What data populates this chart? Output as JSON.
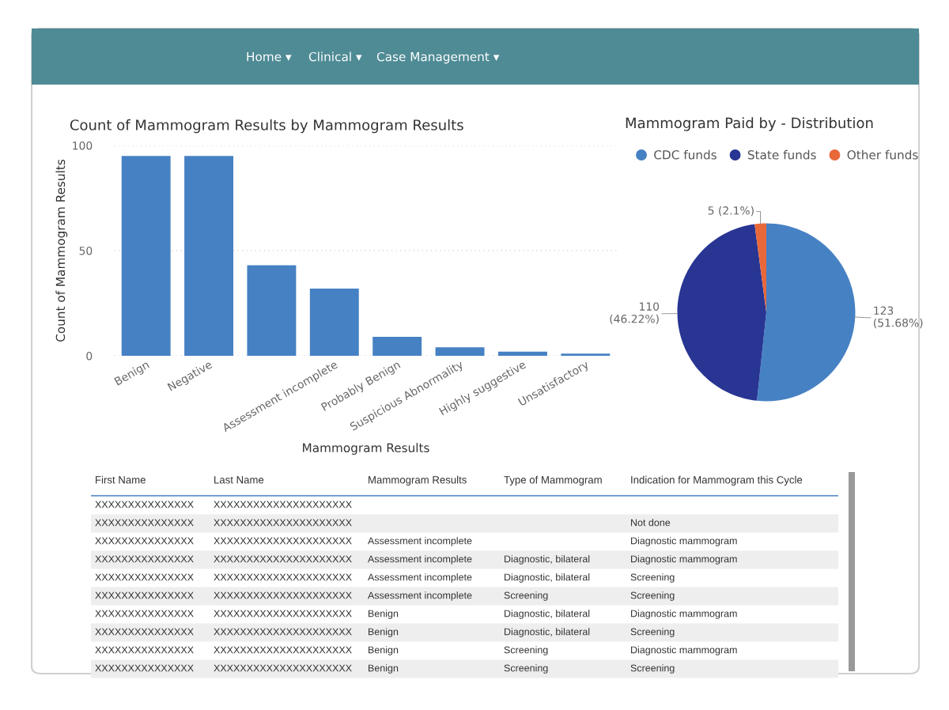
{
  "chart_data": [
    {
      "type": "other",
      "annotations": [
        "Home ▾",
        "Clinical ▾",
        "Case Management ▾"
      ]
    },
    {
      "type": "bar",
      "title": "Count of Mammogram Results by Mammogram Results",
      "xlabel": "Mammogram Results",
      "ylabel": "Count of Mammogram Results",
      "categories": [
        "Benign",
        "Negative",
        null,
        "Assessment incomplete",
        "Probably Benign",
        "Suspicious Abnormality",
        "Highly suggestive",
        "Unsatisfactory"
      ],
      "values": [
        95,
        95,
        43,
        32,
        9,
        4,
        2,
        1
      ],
      "color": "#4681c3",
      "ylim": [
        0,
        100
      ],
      "yticks": [
        0,
        50,
        100
      ],
      "grid": "y"
    },
    {
      "type": "pie",
      "title": "Mammogram Paid by - Distribution",
      "categories": [
        "CDC funds",
        "State funds",
        "Other funds"
      ],
      "values": [
        123,
        110,
        5
      ],
      "colors": [
        "#4681c3",
        "#283593",
        "#e8683a"
      ],
      "value_labels": [
        "123\n(51.68%)",
        "110\n(46.22%)",
        "5 (2.1%)"
      ],
      "legend": "top"
    },
    {
      "type": "other",
      "categories": [
        "First Name",
        "Last Name",
        "Mammogram Results",
        "Type of Mammogram",
        "Indication for Mammogram this Cycle"
      ],
      "cell_labels": [
        [
          "XXXXXXXXXXXXXXX",
          "XXXXXXXXXXXXXXXXXXXXX",
          null,
          null,
          null
        ],
        [
          "XXXXXXXXXXXXXXX",
          "XXXXXXXXXXXXXXXXXXXXX",
          null,
          null,
          "Not done"
        ],
        [
          "XXXXXXXXXXXXXXX",
          "XXXXXXXXXXXXXXXXXXXXX",
          "Assessment incomplete",
          null,
          "Diagnostic mammogram"
        ],
        [
          "XXXXXXXXXXXXXXX",
          "XXXXXXXXXXXXXXXXXXXXX",
          "Assessment incomplete",
          "Diagnostic, bilateral",
          "Diagnostic mammogram"
        ],
        [
          "XXXXXXXXXXXXXXX",
          "XXXXXXXXXXXXXXXXXXXXX",
          "Assessment incomplete",
          "Diagnostic, bilateral",
          "Screening"
        ],
        [
          "XXXXXXXXXXXXXXX",
          "XXXXXXXXXXXXXXXXXXXXX",
          "Assessment incomplete",
          "Screening",
          "Screening"
        ],
        [
          "XXXXXXXXXXXXXXX",
          "XXXXXXXXXXXXXXXXXXXXX",
          "Benign",
          "Diagnostic, bilateral",
          "Diagnostic mammogram"
        ],
        [
          "XXXXXXXXXXXXXXX",
          "XXXXXXXXXXXXXXXXXXXXX",
          "Benign",
          "Diagnostic, bilateral",
          "Screening"
        ],
        [
          "XXXXXXXXXXXXXXX",
          "XXXXXXXXXXXXXXXXXXXXX",
          "Benign",
          "Screening",
          "Diagnostic mammogram"
        ],
        [
          "XXXXXXXXXXXXXXX",
          "XXXXXXXXXXXXXXXXXXXXX",
          "Benign",
          "Screening",
          "Screening"
        ]
      ]
    }
  ]
}
